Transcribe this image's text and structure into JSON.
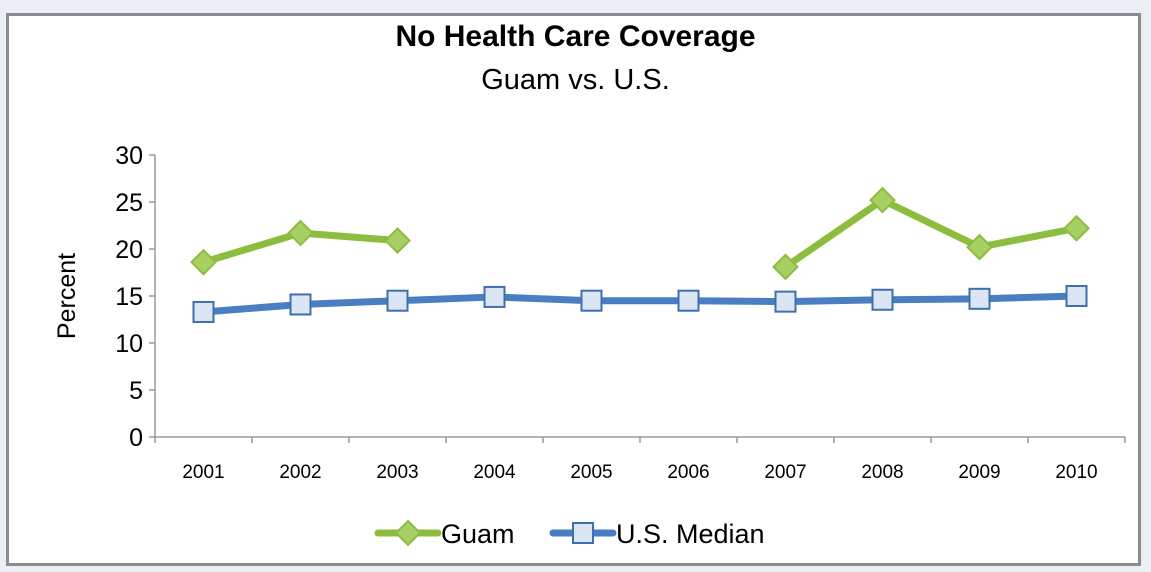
{
  "chart_data": {
    "type": "line",
    "title": "No Health Care Coverage",
    "subtitle": "Guam vs. U.S.",
    "xlabel": "",
    "ylabel": "Percent",
    "categories": [
      "2001",
      "2002",
      "2003",
      "2004",
      "2005",
      "2006",
      "2007",
      "2008",
      "2009",
      "2010"
    ],
    "ylim": [
      0,
      30
    ],
    "yticks": [
      0,
      5,
      10,
      15,
      20,
      25,
      30
    ],
    "grid": false,
    "legend_position": "bottom",
    "series": [
      {
        "name": "Guam",
        "color": "#8cbd3f",
        "marker": "diamond",
        "values": [
          18.6,
          21.7,
          20.9,
          null,
          null,
          null,
          18.1,
          25.2,
          20.2,
          22.2
        ]
      },
      {
        "name": "U.S. Median",
        "color": "#4a7ec2",
        "marker": "square",
        "values": [
          13.3,
          14.1,
          14.5,
          14.9,
          14.5,
          14.5,
          14.4,
          14.6,
          14.7,
          15.0
        ]
      }
    ]
  }
}
